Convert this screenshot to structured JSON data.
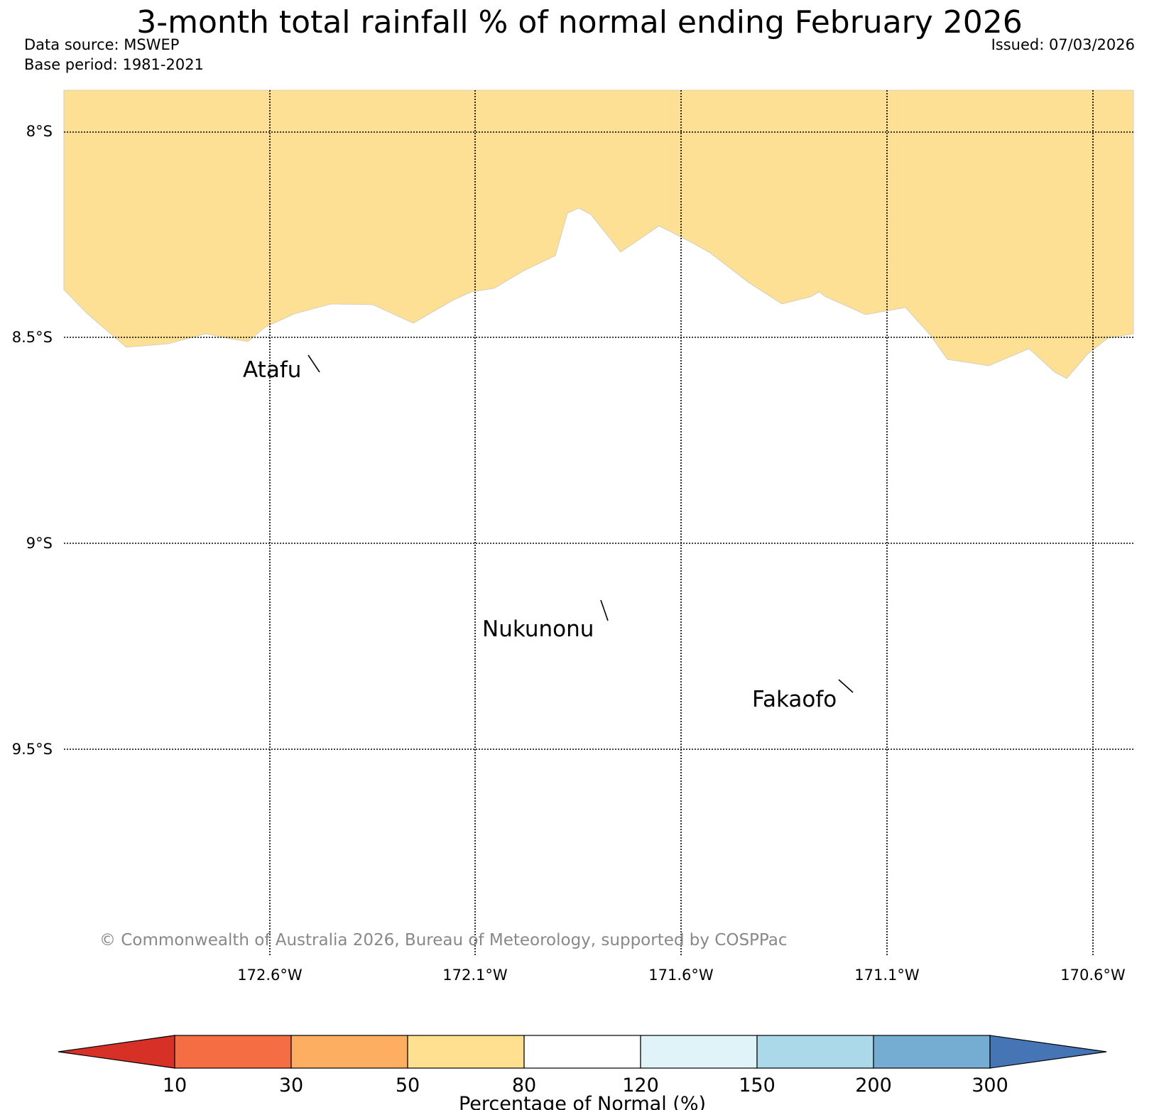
{
  "header": {
    "title": "3-month total rainfall % of normal ending February 2026",
    "data_source": "Data source: MSWEP",
    "base_period": "Base period: 1981-2021",
    "issued": "Issued: 07/03/2026"
  },
  "map": {
    "lat_labels": [
      "8°S",
      "8.5°S",
      "9°S",
      "9.5°S"
    ],
    "lon_labels": [
      "172.6°W",
      "172.1°W",
      "171.6°W",
      "171.1°W",
      "170.6°W"
    ],
    "places": [
      {
        "name": "Atafu"
      },
      {
        "name": "Nukunonu"
      },
      {
        "name": "Fakaofo"
      }
    ],
    "filled_category": "50-80",
    "filled_color": "#fde093",
    "copyright": "© Commonwealth of Australia 2026, Bureau of Meteorology, supported by COSPPac"
  },
  "colorbar": {
    "label": "Percentage of Normal (%)",
    "ticks": [
      "10",
      "30",
      "50",
      "80",
      "120",
      "150",
      "200",
      "300"
    ],
    "colors": {
      "below_10": "#d73027",
      "10_30": "#f46d43",
      "30_50": "#fdae61",
      "50_80": "#fee090",
      "80_120": "#ffffff",
      "120_150": "#e0f3f8",
      "150_200": "#abd9e9",
      "200_300": "#74add1",
      "above_300": "#4575b4"
    }
  }
}
